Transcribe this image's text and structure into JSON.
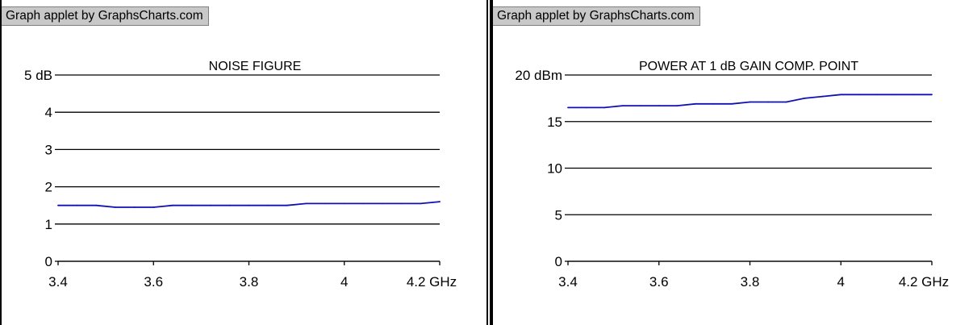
{
  "credit_text": "Graph applet by GraphsCharts.com",
  "colors": {
    "line": "#1010b4",
    "grid": "#000000",
    "credit_bg": "#c8c8c8"
  },
  "chart_data": [
    {
      "type": "line",
      "title": "NOISE FIGURE",
      "x_ticks": [
        "3.4",
        "3.6",
        "3.8",
        "4",
        "4.2 GHz"
      ],
      "x_tick_values": [
        3.4,
        3.6,
        3.8,
        4.0,
        4.2
      ],
      "y_ticks": [
        "0",
        "1",
        "2",
        "3",
        "4",
        "5 dB"
      ],
      "y_tick_values": [
        0,
        1,
        2,
        3,
        4,
        5
      ],
      "xlim": [
        3.4,
        4.2
      ],
      "ylim": [
        0,
        5
      ],
      "grid": "horizontal",
      "series": [
        {
          "x": [
            3.4,
            3.44,
            3.48,
            3.52,
            3.56,
            3.6,
            3.64,
            3.68,
            3.72,
            3.76,
            3.8,
            3.84,
            3.88,
            3.92,
            3.96,
            4.0,
            4.04,
            4.08,
            4.12,
            4.16,
            4.2
          ],
          "values": [
            1.5,
            1.5,
            1.5,
            1.45,
            1.45,
            1.45,
            1.5,
            1.5,
            1.5,
            1.5,
            1.5,
            1.5,
            1.5,
            1.55,
            1.55,
            1.55,
            1.55,
            1.55,
            1.55,
            1.55,
            1.6
          ]
        }
      ]
    },
    {
      "type": "line",
      "title": "POWER AT 1 dB GAIN COMP. POINT",
      "x_ticks": [
        "3.4",
        "3.6",
        "3.8",
        "4",
        "4.2 GHz"
      ],
      "x_tick_values": [
        3.4,
        3.6,
        3.8,
        4.0,
        4.2
      ],
      "y_ticks": [
        "0",
        "5",
        "10",
        "15",
        "20 dBm"
      ],
      "y_tick_values": [
        0,
        5,
        10,
        15,
        20
      ],
      "xlim": [
        3.4,
        4.2
      ],
      "ylim": [
        0,
        20
      ],
      "grid": "horizontal",
      "series": [
        {
          "x": [
            3.4,
            3.44,
            3.48,
            3.52,
            3.56,
            3.6,
            3.64,
            3.68,
            3.72,
            3.76,
            3.8,
            3.84,
            3.88,
            3.92,
            3.96,
            4.0,
            4.04,
            4.08,
            4.12,
            4.16,
            4.2
          ],
          "values": [
            16.5,
            16.5,
            16.5,
            16.7,
            16.7,
            16.7,
            16.7,
            16.9,
            16.9,
            16.9,
            17.1,
            17.1,
            17.1,
            17.5,
            17.7,
            17.9,
            17.9,
            17.9,
            17.9,
            17.9,
            17.9
          ]
        }
      ]
    }
  ]
}
